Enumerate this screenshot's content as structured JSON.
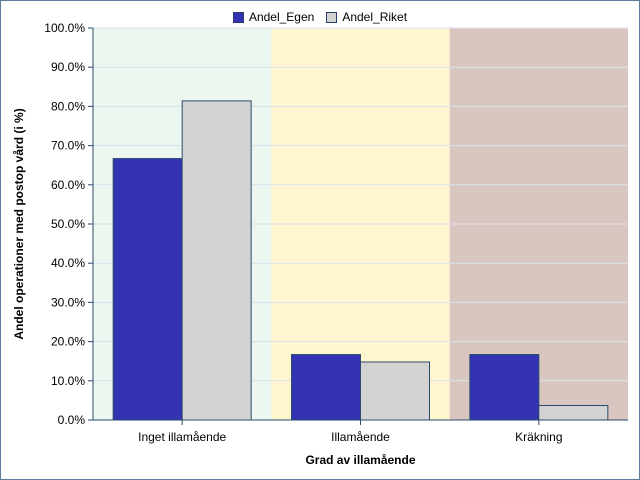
{
  "chart_data": {
    "type": "bar",
    "categories": [
      "Inget illamående",
      "Illamående",
      "Kräkning"
    ],
    "series": [
      {
        "name": "Andel_Egen",
        "values": [
          66.7,
          16.7,
          16.7
        ],
        "color": "#3333b3"
      },
      {
        "name": "Andel_Riket",
        "values": [
          81.4,
          14.8,
          3.7
        ],
        "color": "#d3d3d3"
      }
    ],
    "category_backgrounds": [
      "#ecf7f0",
      "#fff6cf",
      "#dac6c0"
    ],
    "xlabel": "Grad av illamående",
    "ylabel": "Andel operationer med postop vård (i %)",
    "ylim": [
      0,
      100
    ],
    "yticks": [
      "0.0%",
      "10.0%",
      "20.0%",
      "30.0%",
      "40.0%",
      "50.0%",
      "60.0%",
      "70.0%",
      "80.0%",
      "90.0%",
      "100.0%"
    ],
    "grid": true,
    "legend_position": "top-center"
  }
}
